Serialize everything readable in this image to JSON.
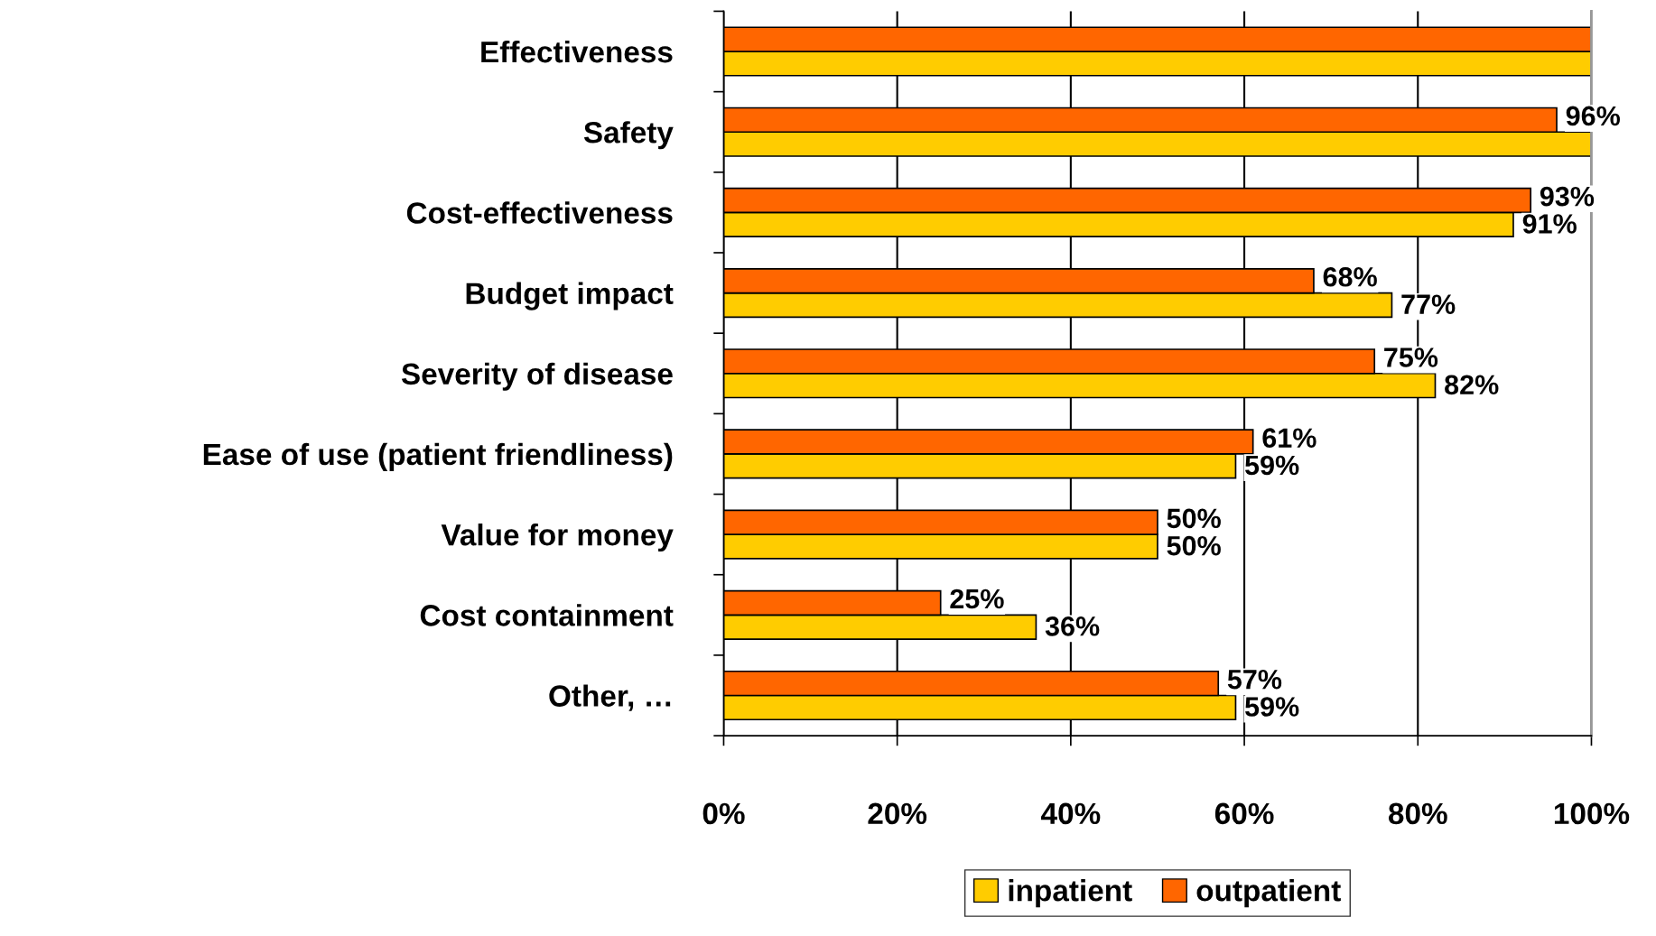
{
  "chart_data": {
    "type": "bar",
    "orientation": "horizontal",
    "categories": [
      "Effectiveness",
      "Safety",
      "Cost-effectiveness",
      "Budget impact",
      "Severity of disease",
      "Ease of use (patient friendliness)",
      "Value for money",
      "Cost containment",
      "Other, …"
    ],
    "series": [
      {
        "name": "inpatient",
        "color": "#ffcc00",
        "values": [
          100,
          100,
          91,
          77,
          82,
          59,
          50,
          36,
          59
        ],
        "value_labels": [
          null,
          null,
          "91%",
          "77%",
          "82%",
          "59%",
          "50%",
          "36%",
          "59%"
        ]
      },
      {
        "name": "outpatient",
        "color": "#ff6600",
        "values": [
          100,
          96,
          93,
          68,
          75,
          61,
          50,
          25,
          57
        ],
        "value_labels": [
          null,
          "96%",
          "93%",
          "68%",
          "75%",
          "61%",
          "50%",
          "25%",
          "57%"
        ]
      }
    ],
    "xlim": [
      0,
      100
    ],
    "xticks": [
      {
        "value": 0,
        "label": "0%"
      },
      {
        "value": 20,
        "label": "20%"
      },
      {
        "value": 40,
        "label": "40%"
      },
      {
        "value": 60,
        "label": "60%"
      },
      {
        "value": 80,
        "label": "80%"
      },
      {
        "value": 100,
        "label": "100%"
      }
    ],
    "grid": "x",
    "legend": "bottom"
  }
}
